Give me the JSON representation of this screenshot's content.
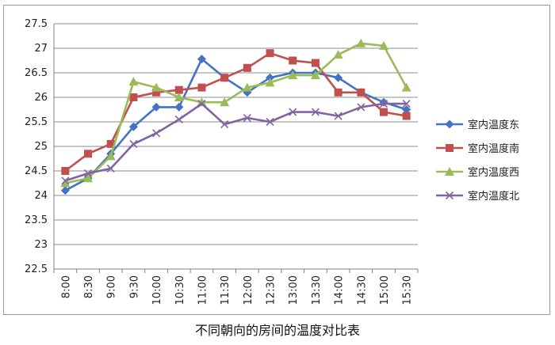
{
  "chart_data": {
    "type": "line",
    "title": "",
    "caption": "不同朝向的房间的温度对比表",
    "xlabel": "",
    "ylabel": "",
    "categories": [
      "8:00",
      "8:30",
      "9:00",
      "9:30",
      "10:00",
      "10:30",
      "11:00",
      "11:30",
      "12:00",
      "12:30",
      "13:00",
      "13:30",
      "14:00",
      "14:30",
      "15:00",
      "15:30"
    ],
    "ylim": [
      22.5,
      27.5
    ],
    "yticks": [
      "22.5",
      "23",
      "23.5",
      "24",
      "24.5",
      "25",
      "25.5",
      "26",
      "26.5",
      "27",
      "27.5"
    ],
    "grid": true,
    "legend_position": "right",
    "series": [
      {
        "name": "室内温度东",
        "color": "#4472c4",
        "marker": "diamond",
        "values": [
          24.1,
          24.35,
          24.85,
          25.4,
          25.8,
          25.8,
          26.78,
          26.4,
          26.1,
          26.4,
          26.5,
          26.5,
          26.4,
          26.1,
          25.9,
          25.75
        ]
      },
      {
        "name": "室内温度南",
        "color": "#c0504d",
        "marker": "square",
        "values": [
          24.5,
          24.85,
          25.05,
          26.0,
          26.1,
          26.15,
          26.2,
          26.4,
          26.6,
          26.9,
          26.75,
          26.7,
          26.1,
          26.1,
          25.7,
          25.62
        ]
      },
      {
        "name": "室内温度西",
        "color": "#9bbb59",
        "marker": "triangle",
        "values": [
          24.25,
          24.35,
          24.8,
          26.32,
          26.2,
          26.0,
          25.9,
          25.9,
          26.2,
          26.3,
          26.45,
          26.45,
          26.87,
          27.1,
          27.05,
          26.2
        ]
      },
      {
        "name": "室内温度北",
        "color": "#8064a2",
        "marker": "x",
        "values": [
          24.3,
          24.45,
          24.55,
          25.05,
          25.27,
          25.55,
          25.87,
          25.45,
          25.58,
          25.5,
          25.7,
          25.7,
          25.62,
          25.8,
          25.87,
          25.87
        ]
      }
    ]
  }
}
